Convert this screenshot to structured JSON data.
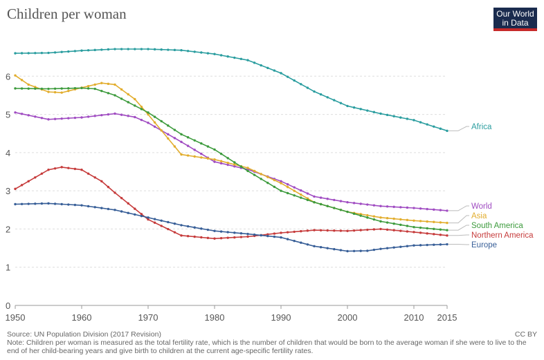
{
  "header": {
    "title": "Children per woman",
    "logo_line1": "Our World",
    "logo_line2": "in Data"
  },
  "footer": {
    "source": "Source: UN Population Division (2017 Revision)",
    "note": "Note: Children per woman is measured as the total fertility rate, which is the number of children that would be born to the average woman if she were to live to the end of her child-bearing years and give birth to children at the current age-specific fertility rates.",
    "license": "CC BY"
  },
  "chart_data": {
    "type": "line",
    "title": "Children per woman",
    "xlim": [
      1950,
      2015
    ],
    "ylim": [
      0,
      7
    ],
    "x_ticks": [
      "1950",
      "1960",
      "1970",
      "1980",
      "1990",
      "2000",
      "2010",
      "2015"
    ],
    "y_ticks": [
      "0",
      "1",
      "2",
      "3",
      "4",
      "5",
      "6"
    ],
    "grid": "horizontal dashed",
    "legend": "right, labels at line ends",
    "series": [
      {
        "name": "Africa",
        "color": "#2a9d9f",
        "points": [
          [
            1950,
            6.6
          ],
          [
            1955,
            6.61
          ],
          [
            1960,
            6.67
          ],
          [
            1965,
            6.71
          ],
          [
            1970,
            6.71
          ],
          [
            1975,
            6.68
          ],
          [
            1980,
            6.58
          ],
          [
            1985,
            6.42
          ],
          [
            1990,
            6.08
          ],
          [
            1995,
            5.6
          ],
          [
            2000,
            5.22
          ],
          [
            2005,
            5.02
          ],
          [
            2010,
            4.85
          ],
          [
            2015,
            4.57
          ]
        ]
      },
      {
        "name": "World",
        "color": "#a04cc2",
        "points": [
          [
            1950,
            5.05
          ],
          [
            1955,
            4.87
          ],
          [
            1960,
            4.92
          ],
          [
            1965,
            5.02
          ],
          [
            1968,
            4.93
          ],
          [
            1970,
            4.78
          ],
          [
            1975,
            4.28
          ],
          [
            1980,
            3.76
          ],
          [
            1985,
            3.56
          ],
          [
            1990,
            3.25
          ],
          [
            1995,
            2.85
          ],
          [
            2000,
            2.7
          ],
          [
            2005,
            2.6
          ],
          [
            2010,
            2.55
          ],
          [
            2015,
            2.48
          ]
        ]
      },
      {
        "name": "Asia",
        "color": "#e2ad2d",
        "points": [
          [
            1950,
            6.02
          ],
          [
            1952,
            5.78
          ],
          [
            1955,
            5.59
          ],
          [
            1957,
            5.57
          ],
          [
            1960,
            5.7
          ],
          [
            1963,
            5.82
          ],
          [
            1965,
            5.78
          ],
          [
            1968,
            5.4
          ],
          [
            1970,
            5.0
          ],
          [
            1975,
            3.95
          ],
          [
            1980,
            3.82
          ],
          [
            1985,
            3.6
          ],
          [
            1990,
            3.2
          ],
          [
            1995,
            2.7
          ],
          [
            2000,
            2.45
          ],
          [
            2005,
            2.3
          ],
          [
            2010,
            2.22
          ],
          [
            2015,
            2.16
          ]
        ]
      },
      {
        "name": "South America",
        "color": "#3d9b3d",
        "points": [
          [
            1950,
            5.68
          ],
          [
            1955,
            5.67
          ],
          [
            1960,
            5.69
          ],
          [
            1962,
            5.67
          ],
          [
            1965,
            5.5
          ],
          [
            1970,
            5.05
          ],
          [
            1975,
            4.48
          ],
          [
            1980,
            4.08
          ],
          [
            1985,
            3.52
          ],
          [
            1990,
            3.0
          ],
          [
            1995,
            2.7
          ],
          [
            2000,
            2.45
          ],
          [
            2005,
            2.2
          ],
          [
            2010,
            2.05
          ],
          [
            2015,
            1.97
          ]
        ]
      },
      {
        "name": "Northern America",
        "color": "#c63b3b",
        "points": [
          [
            1950,
            3.05
          ],
          [
            1952,
            3.25
          ],
          [
            1955,
            3.55
          ],
          [
            1957,
            3.62
          ],
          [
            1960,
            3.55
          ],
          [
            1963,
            3.25
          ],
          [
            1965,
            2.95
          ],
          [
            1970,
            2.25
          ],
          [
            1975,
            1.83
          ],
          [
            1980,
            1.75
          ],
          [
            1985,
            1.8
          ],
          [
            1990,
            1.9
          ],
          [
            1995,
            1.97
          ],
          [
            2000,
            1.95
          ],
          [
            2005,
            2.0
          ],
          [
            2010,
            1.92
          ],
          [
            2015,
            1.83
          ]
        ]
      },
      {
        "name": "Europe",
        "color": "#375e97",
        "points": [
          [
            1950,
            2.65
          ],
          [
            1955,
            2.67
          ],
          [
            1960,
            2.62
          ],
          [
            1965,
            2.5
          ],
          [
            1970,
            2.3
          ],
          [
            1975,
            2.1
          ],
          [
            1980,
            1.95
          ],
          [
            1985,
            1.87
          ],
          [
            1990,
            1.78
          ],
          [
            1995,
            1.55
          ],
          [
            2000,
            1.42
          ],
          [
            2003,
            1.43
          ],
          [
            2005,
            1.48
          ],
          [
            2010,
            1.57
          ],
          [
            2015,
            1.6
          ]
        ]
      }
    ]
  }
}
